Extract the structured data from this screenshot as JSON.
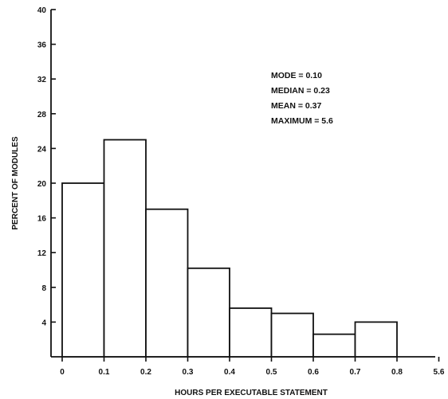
{
  "chart_data": {
    "type": "bar",
    "xlabel": "HOURS PER EXECUTABLE STATEMENT",
    "ylabel": "PERCENT OF MODULES",
    "ylim": [
      0,
      40
    ],
    "y_ticks": [
      "4",
      "8",
      "12",
      "16",
      "20",
      "24",
      "28",
      "32",
      "36",
      "40"
    ],
    "x_ticks": [
      "0",
      "0.1",
      "0.2",
      "0.3",
      "0.4",
      "0.5",
      "0.6",
      "0.7",
      "0.8",
      "5.6"
    ],
    "bins": [
      {
        "from": 0.0,
        "to": 0.1,
        "value": 20
      },
      {
        "from": 0.1,
        "to": 0.2,
        "value": 25
      },
      {
        "from": 0.2,
        "to": 0.3,
        "value": 17
      },
      {
        "from": 0.3,
        "to": 0.4,
        "value": 10.2
      },
      {
        "from": 0.4,
        "to": 0.5,
        "value": 5.6
      },
      {
        "from": 0.5,
        "to": 0.6,
        "value": 5
      },
      {
        "from": 0.6,
        "to": 0.7,
        "value": 2.6
      },
      {
        "from": 0.7,
        "to": 0.8,
        "value": 4
      }
    ],
    "annotations": [
      "MODE = 0.10",
      "MEDIAN = 0.23",
      "MEAN = 0.37",
      "MAXIMUM = 5.6"
    ],
    "grid": false,
    "legend": "none"
  }
}
